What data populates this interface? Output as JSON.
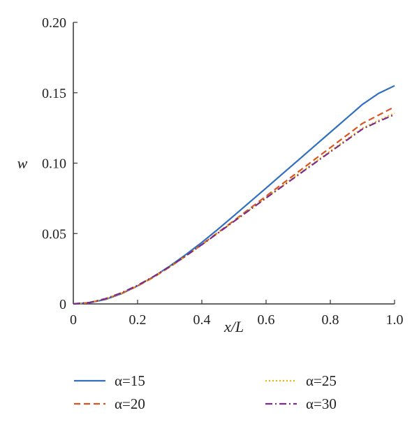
{
  "chart_data": {
    "type": "line",
    "title": "",
    "xlabel": "x/L",
    "ylabel": "w",
    "xlim": [
      0,
      1.0
    ],
    "ylim": [
      0,
      0.2
    ],
    "x_ticks": [
      "0",
      "0.2",
      "0.4",
      "0.6",
      "0.8",
      "1.0"
    ],
    "x_tick_values": [
      0,
      0.2,
      0.4,
      0.6,
      0.8,
      1.0
    ],
    "y_ticks": [
      "0",
      "0.05",
      "0.10",
      "0.15",
      "0.20"
    ],
    "y_tick_values": [
      0,
      0.05,
      0.1,
      0.15,
      0.2
    ],
    "grid": false,
    "legend_position": "bottom",
    "x": [
      0,
      0.05,
      0.1,
      0.15,
      0.2,
      0.25,
      0.3,
      0.35,
      0.4,
      0.45,
      0.5,
      0.55,
      0.6,
      0.65,
      0.7,
      0.75,
      0.8,
      0.85,
      0.9,
      0.95,
      1.0
    ],
    "series": [
      {
        "name": "α=15",
        "color": "#2f6fbd",
        "dash": "solid",
        "values": [
          0,
          0.0008,
          0.0032,
          0.0073,
          0.0128,
          0.0194,
          0.0268,
          0.035,
          0.0437,
          0.053,
          0.0627,
          0.0725,
          0.0823,
          0.0922,
          0.1021,
          0.112,
          0.1219,
          0.1318,
          0.1417,
          0.1495,
          0.155
        ]
      },
      {
        "name": "α=20",
        "color": "#d9531e",
        "dash": "dashed",
        "values": [
          0,
          0.0009,
          0.0035,
          0.0075,
          0.0127,
          0.019,
          0.0262,
          0.034,
          0.0422,
          0.0507,
          0.0592,
          0.0679,
          0.0765,
          0.0852,
          0.0938,
          0.1024,
          0.111,
          0.1196,
          0.1282,
          0.1341,
          0.14
        ]
      },
      {
        "name": "α=25",
        "color": "#f0b400",
        "dash": "dotted",
        "values": [
          0,
          0.0009,
          0.0036,
          0.0077,
          0.013,
          0.0193,
          0.0263,
          0.034,
          0.042,
          0.0503,
          0.0587,
          0.0671,
          0.0755,
          0.0838,
          0.0921,
          0.1003,
          0.1085,
          0.1167,
          0.1249,
          0.1303,
          0.1355
        ]
      },
      {
        "name": "α=30",
        "color": "#7b2a8e",
        "dash": "dashdot",
        "values": [
          0,
          0.001,
          0.0037,
          0.0079,
          0.0132,
          0.0195,
          0.0265,
          0.0341,
          0.0421,
          0.0503,
          0.0586,
          0.0669,
          0.0752,
          0.0834,
          0.0916,
          0.0998,
          0.108,
          0.1161,
          0.1242,
          0.1296,
          0.1345
        ]
      }
    ]
  }
}
